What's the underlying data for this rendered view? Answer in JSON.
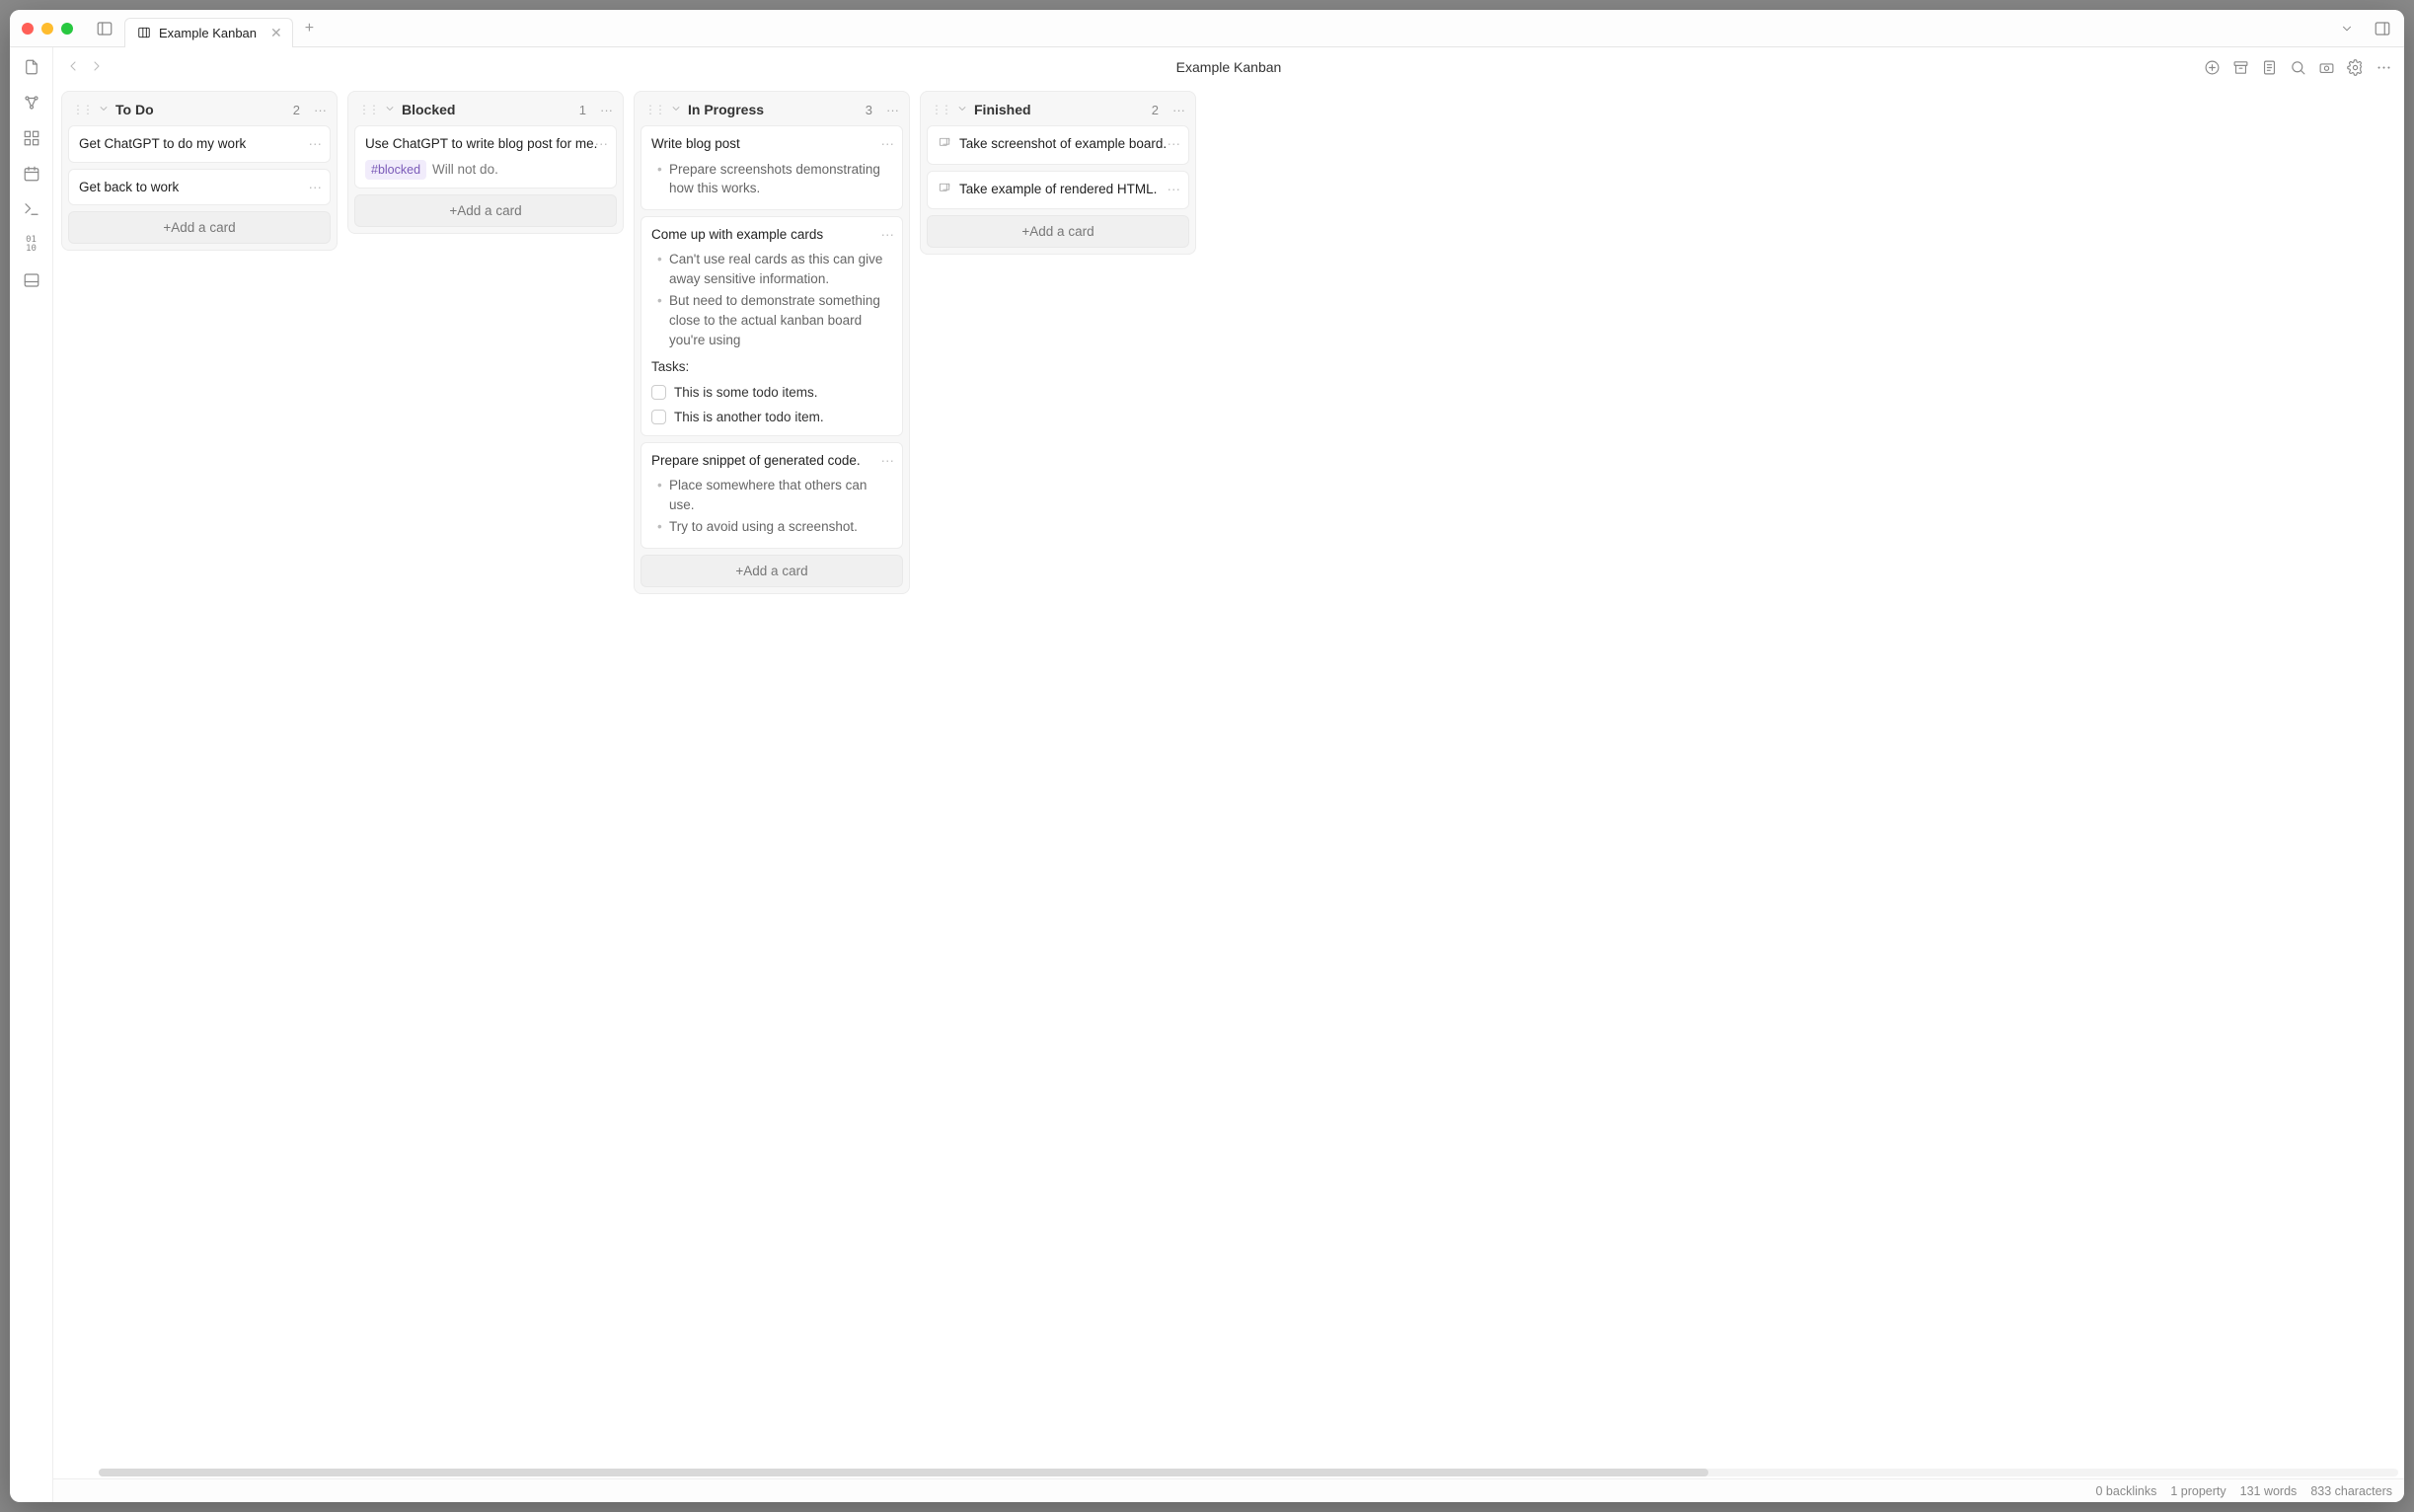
{
  "window": {
    "tab_title": "Example Kanban",
    "page_title": "Example Kanban"
  },
  "add_card_label": "+Add a card",
  "lanes": [
    {
      "title": "To Do",
      "count": "2",
      "cards": [
        {
          "title": "Get ChatGPT to do my work"
        },
        {
          "title": "Get back to work"
        }
      ]
    },
    {
      "title": "Blocked",
      "count": "1",
      "cards": [
        {
          "title": "Use ChatGPT to write blog post for me.",
          "tag": "#blocked",
          "tag_note": "Will not do."
        }
      ]
    },
    {
      "title": "In Progress",
      "count": "3",
      "cards": [
        {
          "title": "Write blog post",
          "bullets": [
            "Prepare screenshots demonstrating how this works."
          ]
        },
        {
          "title": "Come up with example cards",
          "bullets": [
            "Can't use real cards as this can give away sensitive information.",
            "But need to demonstrate something close to the actual kanban board you're using"
          ],
          "tasks_label": "Tasks:",
          "tasks": [
            "This is some todo items.",
            "This is another todo item."
          ]
        },
        {
          "title": "Prepare snippet of generated code.",
          "bullets": [
            "Place somewhere that others can use.",
            "Try to avoid using a screenshot."
          ]
        }
      ]
    },
    {
      "title": "Finished",
      "count": "2",
      "cards": [
        {
          "title": "Take screenshot of example board.",
          "has_icon": true
        },
        {
          "title": "Take example of rendered HTML.",
          "has_icon": true
        }
      ]
    }
  ],
  "status": {
    "backlinks": "0 backlinks",
    "properties": "1 property",
    "words": "131 words",
    "chars": "833 characters"
  }
}
